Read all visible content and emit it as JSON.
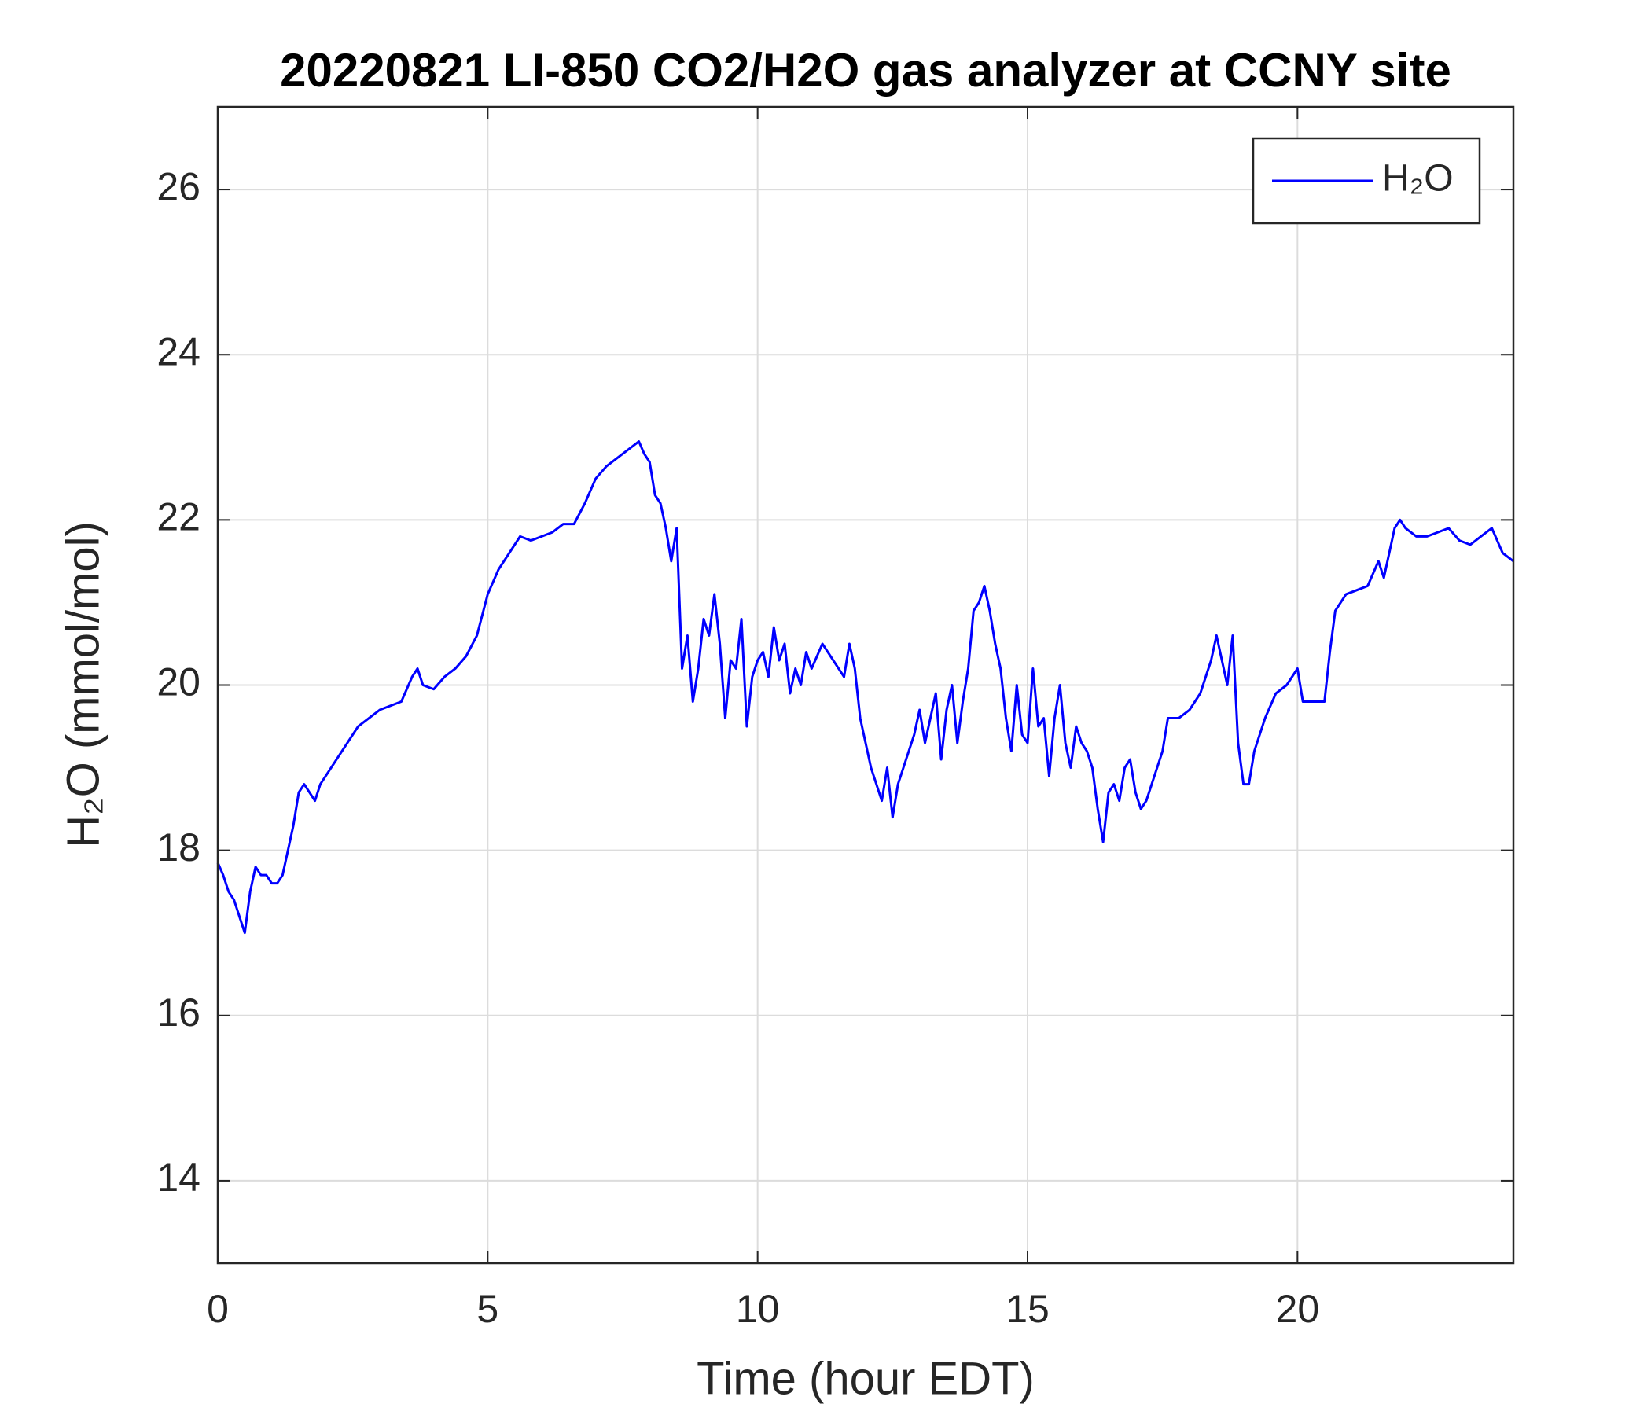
{
  "chart_data": {
    "type": "line",
    "title": "20220821 LI-850 CO2/H2O gas analyzer at CCNY site",
    "x_label": "Time (hour EDT)",
    "y_label": "H₂O (mmol/mol)",
    "xlim": [
      0,
      24
    ],
    "ylim": [
      13,
      27
    ],
    "xticks": [
      0,
      5,
      10,
      15,
      20
    ],
    "yticks": [
      14,
      16,
      18,
      20,
      22,
      24,
      26
    ],
    "grid": true,
    "legend": "upper right",
    "x": [
      0,
      0.1,
      0.2,
      0.3,
      0.4,
      0.5,
      0.6,
      0.7,
      0.8,
      0.9,
      1.0,
      1.1,
      1.2,
      1.3,
      1.4,
      1.5,
      1.6,
      1.7,
      1.8,
      1.9,
      2.0,
      2.2,
      2.4,
      2.6,
      2.8,
      3.0,
      3.2,
      3.4,
      3.6,
      3.7,
      3.8,
      4.0,
      4.2,
      4.4,
      4.6,
      4.8,
      5.0,
      5.2,
      5.4,
      5.6,
      5.8,
      6.0,
      6.2,
      6.4,
      6.6,
      6.8,
      7.0,
      7.2,
      7.4,
      7.6,
      7.8,
      7.9,
      8.0,
      8.1,
      8.2,
      8.3,
      8.4,
      8.5,
      8.6,
      8.7,
      8.8,
      8.9,
      9.0,
      9.1,
      9.2,
      9.3,
      9.4,
      9.5,
      9.6,
      9.7,
      9.8,
      9.9,
      10.0,
      10.1,
      10.2,
      10.3,
      10.4,
      10.5,
      10.6,
      10.7,
      10.8,
      10.9,
      11.0,
      11.2,
      11.4,
      11.6,
      11.7,
      11.8,
      11.9,
      12.0,
      12.1,
      12.2,
      12.3,
      12.4,
      12.5,
      12.6,
      12.7,
      12.8,
      12.9,
      13.0,
      13.1,
      13.2,
      13.3,
      13.4,
      13.5,
      13.6,
      13.7,
      13.8,
      13.9,
      14.0,
      14.1,
      14.2,
      14.3,
      14.4,
      14.5,
      14.6,
      14.7,
      14.8,
      14.9,
      15.0,
      15.1,
      15.2,
      15.3,
      15.4,
      15.5,
      15.6,
      15.7,
      15.8,
      15.9,
      16.0,
      16.1,
      16.2,
      16.3,
      16.4,
      16.5,
      16.6,
      16.7,
      16.8,
      16.9,
      17.0,
      17.1,
      17.2,
      17.3,
      17.4,
      17.5,
      17.6,
      17.8,
      18.0,
      18.2,
      18.4,
      18.5,
      18.6,
      18.7,
      18.8,
      18.9,
      19.0,
      19.1,
      19.2,
      19.4,
      19.6,
      19.8,
      20.0,
      20.1,
      20.3,
      20.5,
      20.6,
      20.7,
      20.9,
      21.1,
      21.3,
      21.5,
      21.6,
      21.7,
      21.8,
      21.9,
      22.0,
      22.2,
      22.4,
      22.6,
      22.8,
      23.0,
      23.2,
      23.4,
      23.6,
      23.8,
      24.0
    ],
    "series": [
      {
        "name": "H₂O",
        "color": "#0000ff",
        "values": [
          17.85,
          17.7,
          17.5,
          17.4,
          17.2,
          17.0,
          17.5,
          17.8,
          17.7,
          17.7,
          17.6,
          17.6,
          17.7,
          18.0,
          18.3,
          18.7,
          18.8,
          18.7,
          18.6,
          18.8,
          18.9,
          19.1,
          19.3,
          19.5,
          19.6,
          19.7,
          19.75,
          19.8,
          20.1,
          20.2,
          20.0,
          19.95,
          20.1,
          20.2,
          20.35,
          20.6,
          21.1,
          21.4,
          21.6,
          21.8,
          21.75,
          21.8,
          21.85,
          21.95,
          21.95,
          22.2,
          22.5,
          22.65,
          22.75,
          22.85,
          22.95,
          22.8,
          22.7,
          22.3,
          22.2,
          21.9,
          21.5,
          21.9,
          20.2,
          20.6,
          19.8,
          20.2,
          20.8,
          20.6,
          21.1,
          20.5,
          19.6,
          20.3,
          20.2,
          20.8,
          19.5,
          20.1,
          20.3,
          20.4,
          20.1,
          20.7,
          20.3,
          20.5,
          19.9,
          20.2,
          20.0,
          20.4,
          20.2,
          20.5,
          20.3,
          20.1,
          20.5,
          20.2,
          19.6,
          19.3,
          19.0,
          18.8,
          18.6,
          19.0,
          18.4,
          18.8,
          19.0,
          19.2,
          19.4,
          19.7,
          19.3,
          19.6,
          19.9,
          19.1,
          19.7,
          20.0,
          19.3,
          19.8,
          20.2,
          20.9,
          21.0,
          21.2,
          20.9,
          20.5,
          20.2,
          19.6,
          19.2,
          20.0,
          19.4,
          19.3,
          20.2,
          19.5,
          19.6,
          18.9,
          19.6,
          20.0,
          19.3,
          19.0,
          19.5,
          19.3,
          19.2,
          19.0,
          18.5,
          18.1,
          18.7,
          18.8,
          18.6,
          19.0,
          19.1,
          18.7,
          18.5,
          18.6,
          18.8,
          19.0,
          19.2,
          19.6,
          19.6,
          19.7,
          19.9,
          20.3,
          20.6,
          20.3,
          20.0,
          20.6,
          19.3,
          18.8,
          18.8,
          19.2,
          19.6,
          19.9,
          20.0,
          20.2,
          19.8,
          19.8,
          19.8,
          20.4,
          20.9,
          21.1,
          21.15,
          21.2,
          21.5,
          21.3,
          21.6,
          21.9,
          22.0,
          21.9,
          21.8,
          21.8,
          21.85,
          21.9,
          21.75,
          21.7,
          21.8,
          21.9,
          21.6,
          21.5
        ]
      }
    ]
  }
}
